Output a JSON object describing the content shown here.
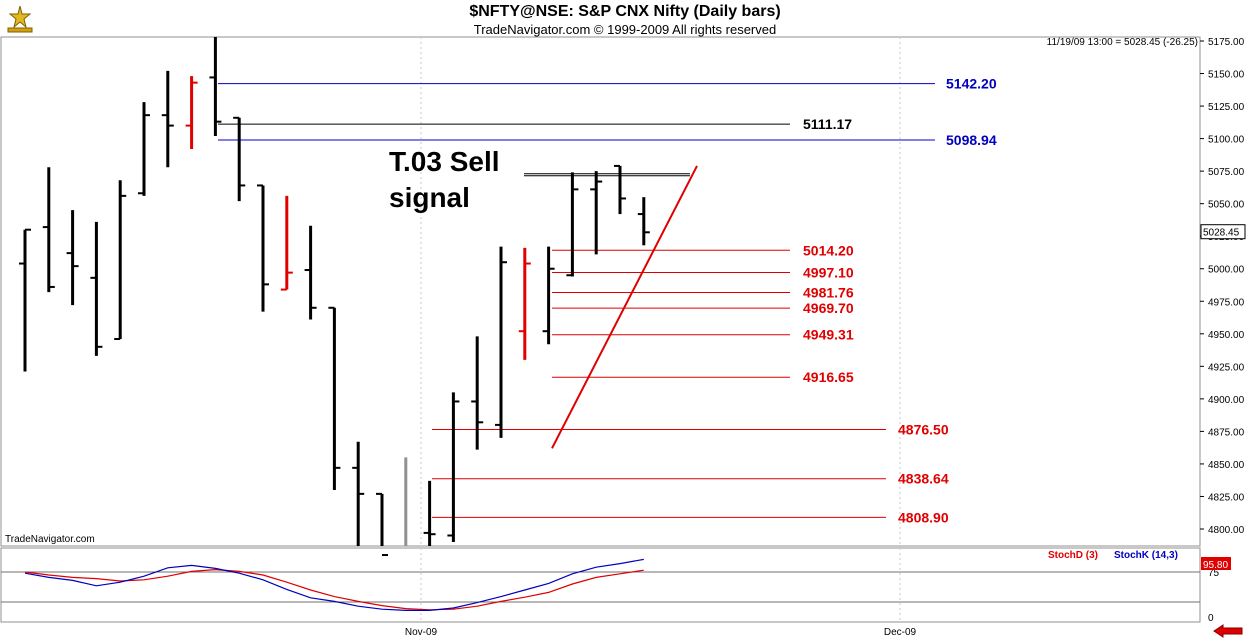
{
  "header": {
    "title": "$NFTY@NSE:  S&P CNX Nifty  (Daily bars)",
    "subtitle": "TradeNavigator.com © 1999-2009 All rights reserved",
    "readout": "11/19/09 13:00 = 5028.45 (-26.25)",
    "credit": "TradeNavigator.com"
  },
  "annotation": {
    "line1": "T.03 Sell",
    "line2": "signal"
  },
  "colors": {
    "bar": "#000000",
    "bar_signal": "#e00000",
    "blue_level": "#0000c0",
    "black_level": "#000000",
    "red_level": "#e00000",
    "stoch_d": "#e00000",
    "stoch_k": "#0000c0",
    "grid": "#c8c8d0",
    "price_tag_bg": "#ffffff",
    "stoch_tag_bg": "#e00000"
  },
  "icons": {
    "logo": "trade-navigator-logo-icon",
    "scroll": "scroll-left-arrow-icon"
  },
  "chart_data": [
    {
      "type": "ohlc",
      "title": "$NFTY@NSE:  S&P CNX Nifty  (Daily bars)",
      "x_dates": [
        "Nov-09",
        "Dec-09"
      ],
      "y_ticks": [
        4800,
        4825,
        4850,
        4875,
        4900,
        4925,
        4950,
        4975,
        5000,
        5025,
        5050,
        5075,
        5100,
        5125,
        5150,
        5175
      ],
      "ylim": [
        4780,
        5180
      ],
      "current_price": "5028.45",
      "bars": [
        {
          "o": 5004,
          "h": 5030,
          "l": 4921,
          "c": 5030
        },
        {
          "o": 5032,
          "h": 5078,
          "l": 4982,
          "c": 4986
        },
        {
          "o": 5012,
          "h": 5045,
          "l": 4972,
          "c": 5002
        },
        {
          "o": 4993,
          "h": 5036,
          "l": 4933,
          "c": 4940
        },
        {
          "o": 4946,
          "h": 5068,
          "l": 4946,
          "c": 5056
        },
        {
          "o": 5058,
          "h": 5128,
          "l": 5056,
          "c": 5118
        },
        {
          "o": 5118,
          "h": 5152,
          "l": 5078,
          "c": 5110
        },
        {
          "o": 5110,
          "h": 5148,
          "l": 5092,
          "c": 5143,
          "signal": true
        },
        {
          "o": 5147,
          "h": 5180,
          "l": 5102,
          "c": 5113
        },
        {
          "o": 5116,
          "h": 5116,
          "l": 5052,
          "c": 5064
        },
        {
          "o": 5064,
          "h": 5064,
          "l": 4967,
          "c": 4988
        },
        {
          "o": 4984,
          "h": 5056,
          "l": 4984,
          "c": 4997,
          "signal": true
        },
        {
          "o": 4999,
          "h": 5033,
          "l": 4961,
          "c": 4970
        },
        {
          "o": 4970,
          "h": 4970,
          "l": 4830,
          "c": 4847
        },
        {
          "o": 4847,
          "h": 4867,
          "l": 4780,
          "c": 4827
        },
        {
          "o": 4827,
          "h": 4827,
          "l": 4780,
          "c": 4780
        },
        {
          "o": 4785,
          "h": 4855,
          "l": 4780,
          "c": 4785,
          "gray": true
        },
        {
          "o": 4797,
          "h": 4837,
          "l": 4780,
          "c": 4796
        },
        {
          "o": 4795,
          "h": 4905,
          "l": 4790,
          "c": 4898
        },
        {
          "o": 4898,
          "h": 4948,
          "l": 4861,
          "c": 4882
        },
        {
          "o": 4880,
          "h": 5017,
          "l": 4870,
          "c": 5005
        },
        {
          "o": 4952,
          "h": 5016,
          "l": 4930,
          "c": 5004,
          "signal": true
        },
        {
          "o": 4952,
          "h": 5017,
          "l": 4942,
          "c": 5000
        },
        {
          "o": 4995,
          "h": 5074,
          "l": 4994,
          "c": 5061
        },
        {
          "o": 5061,
          "h": 5075,
          "l": 5011,
          "c": 5067
        },
        {
          "o": 5079,
          "h": 5079,
          "l": 5042,
          "c": 5054
        },
        {
          "o": 5042,
          "h": 5055,
          "l": 5018,
          "c": 5028
        }
      ],
      "levels": [
        {
          "label": "5142.20",
          "value": 5142.2,
          "color": "blue"
        },
        {
          "label": "5111.17",
          "value": 5111.17,
          "color": "black"
        },
        {
          "label": "5098.94",
          "value": 5098.94,
          "color": "blue"
        },
        {
          "label": "5014.20",
          "value": 5014.2,
          "color": "red"
        },
        {
          "label": "4997.10",
          "value": 4997.1,
          "color": "red"
        },
        {
          "label": "4981.76",
          "value": 4981.76,
          "color": "red"
        },
        {
          "label": "4969.70",
          "value": 4969.7,
          "color": "red"
        },
        {
          "label": "4949.31",
          "value": 4949.31,
          "color": "red"
        },
        {
          "label": "4916.65",
          "value": 4916.65,
          "color": "red"
        },
        {
          "label": "4876.50",
          "value": 4876.5,
          "color": "red"
        },
        {
          "label": "4838.64",
          "value": 4838.64,
          "color": "red"
        },
        {
          "label": "4808.90",
          "value": 4808.9,
          "color": "red"
        }
      ],
      "trendline": {
        "from": 4862,
        "to": 5079
      },
      "signal_line_value": 5073
    },
    {
      "type": "line",
      "series_legend": [
        "StochD (3)",
        "StochK (14,3)"
      ],
      "y_ticks": [
        0,
        75
      ],
      "ylim": [
        0,
        100
      ],
      "current_value": "95.80",
      "series": [
        {
          "name": "StochD (3)",
          "values": [
            75,
            70,
            66,
            64,
            60,
            62,
            68,
            76,
            79,
            76,
            70,
            58,
            45,
            34,
            26,
            19,
            14,
            12,
            13,
            18,
            26,
            33,
            41,
            55,
            66,
            72,
            78
          ]
        },
        {
          "name": "StochK (14,3)",
          "values": [
            73,
            66,
            61,
            52,
            58,
            68,
            82,
            86,
            81,
            73,
            62,
            46,
            32,
            26,
            18,
            13,
            11,
            11,
            15,
            24,
            34,
            45,
            56,
            72,
            83,
            89,
            96
          ]
        }
      ]
    }
  ]
}
